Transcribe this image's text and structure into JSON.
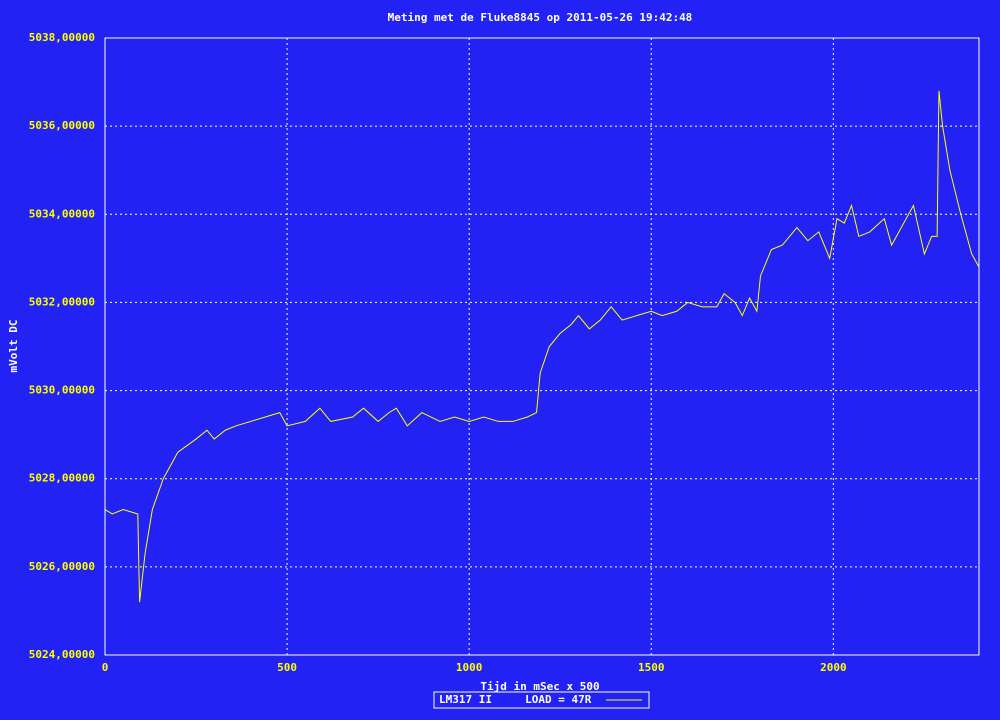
{
  "chart_data": {
    "type": "line",
    "title": "Meting met de Fluke8845 op 2011-05-26 19:42:48",
    "x_label": "Tijd in mSec x 500",
    "y_label": "mVolt DC",
    "background": "#2222f4",
    "grid": true,
    "legend_position": "bottom",
    "x": [
      0,
      20,
      50,
      90,
      95,
      110,
      130,
      160,
      200,
      250,
      280,
      300,
      330,
      360,
      400,
      440,
      480,
      500,
      550,
      590,
      620,
      680,
      710,
      750,
      780,
      800,
      830,
      870,
      920,
      960,
      1000,
      1040,
      1080,
      1120,
      1160,
      1185,
      1195,
      1220,
      1250,
      1280,
      1300,
      1330,
      1360,
      1390,
      1420,
      1460,
      1500,
      1530,
      1570,
      1600,
      1640,
      1680,
      1700,
      1730,
      1750,
      1770,
      1790,
      1800,
      1830,
      1860,
      1900,
      1930,
      1960,
      1990,
      2010,
      2030,
      2050,
      2070,
      2100,
      2140,
      2160,
      2200,
      2220,
      2250,
      2270,
      2285,
      2290,
      2300,
      2320,
      2350,
      2380,
      2400
    ],
    "series": [
      {
        "name": "LM317 II     LOAD = 47R",
        "color": "#ffff00",
        "values": [
          5027.3,
          5027.2,
          5027.3,
          5027.2,
          5025.2,
          5026.3,
          5027.3,
          5028.0,
          5028.6,
          5028.9,
          5029.1,
          5028.9,
          5029.1,
          5029.2,
          5029.3,
          5029.4,
          5029.5,
          5029.2,
          5029.3,
          5029.6,
          5029.3,
          5029.4,
          5029.6,
          5029.3,
          5029.5,
          5029.6,
          5029.2,
          5029.5,
          5029.3,
          5029.4,
          5029.3,
          5029.4,
          5029.3,
          5029.3,
          5029.4,
          5029.5,
          5030.4,
          5031.0,
          5031.3,
          5031.5,
          5031.7,
          5031.4,
          5031.6,
          5031.9,
          5031.6,
          5031.7,
          5031.8,
          5031.7,
          5031.8,
          5032.0,
          5031.9,
          5031.9,
          5032.2,
          5032.0,
          5031.7,
          5032.1,
          5031.8,
          5032.6,
          5033.2,
          5033.3,
          5033.7,
          5033.4,
          5033.6,
          5033.0,
          5033.9,
          5033.8,
          5034.2,
          5033.5,
          5033.6,
          5033.9,
          5033.3,
          5033.9,
          5034.2,
          5033.1,
          5033.5,
          5033.5,
          5036.8,
          5036.0,
          5035.0,
          5034.0,
          5033.1,
          5032.8
        ]
      }
    ],
    "xlim": [
      0,
      2400
    ],
    "xticks": [
      0,
      500,
      1000,
      1500,
      2000
    ],
    "ylim": [
      5024,
      5038
    ],
    "yticks": [
      {
        "value": 5024,
        "label": "5024,00000"
      },
      {
        "value": 5026,
        "label": "5026,00000"
      },
      {
        "value": 5028,
        "label": "5028,00000"
      },
      {
        "value": 5030,
        "label": "5030,00000"
      },
      {
        "value": 5032,
        "label": "5032,00000"
      },
      {
        "value": 5034,
        "label": "5034,00000"
      },
      {
        "value": 5036,
        "label": "5036,00000"
      },
      {
        "value": 5038,
        "label": "5038,00000"
      }
    ]
  }
}
